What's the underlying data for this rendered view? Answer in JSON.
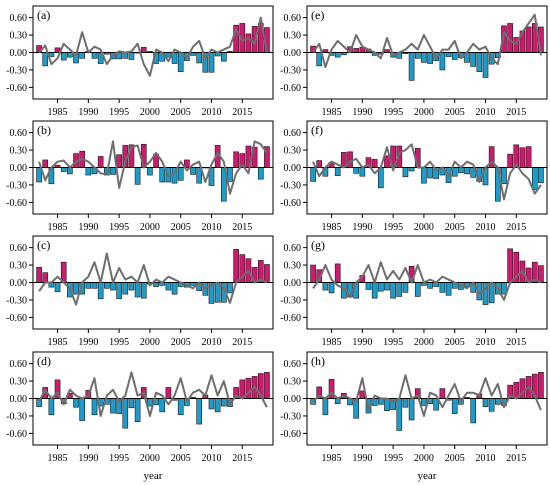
{
  "figure": {
    "xlabel": "year"
  },
  "colors": {
    "positive": "#cc1a6e",
    "negative": "#1a9ccc",
    "line": "#6e6e6e",
    "zero": "#000000"
  },
  "chart_data": [
    {
      "type": "bar",
      "label": "(a)",
      "x": [
        1982,
        1983,
        1984,
        1985,
        1986,
        1987,
        1988,
        1989,
        1990,
        1991,
        1992,
        1993,
        1994,
        1995,
        1996,
        1997,
        1998,
        1999,
        2000,
        2001,
        2002,
        2003,
        2004,
        2005,
        2006,
        2007,
        2008,
        2009,
        2010,
        2011,
        2012,
        2013,
        2014,
        2015,
        2016,
        2017,
        2018,
        2019
      ],
      "bars": [
        0.12,
        -0.23,
        -0.07,
        0.08,
        -0.13,
        -0.08,
        -0.18,
        -0.1,
        0.02,
        -0.1,
        -0.19,
        -0.03,
        -0.11,
        -0.11,
        -0.1,
        -0.12,
        -0.01,
        0.09,
        0.02,
        -0.19,
        -0.15,
        -0.08,
        -0.19,
        -0.33,
        -0.14,
        -0.05,
        -0.18,
        -0.34,
        -0.34,
        -0.06,
        -0.15,
        0.02,
        0.47,
        0.5,
        0.32,
        0.45,
        0.5,
        0.43
      ],
      "line": [
        0.0,
        0.12,
        -0.2,
        -0.1,
        0.15,
        0.05,
        -0.05,
        0.35,
        0.0,
        0.1,
        0.05,
        -0.2,
        -0.05,
        0.02,
        0.0,
        0.02,
        0.15,
        -0.2,
        -0.4,
        0.05,
        0.0,
        -0.15,
        0.05,
        0.0,
        -0.1,
        0.1,
        0.2,
        -0.1,
        0.05,
        0.0,
        0.05,
        0.1,
        0.4,
        0.2,
        0.25,
        0.15,
        0.6,
        0.0
      ],
      "ylim": [
        -0.8,
        0.8
      ],
      "yticks": [
        -0.6,
        -0.3,
        0.0,
        0.3,
        0.6
      ],
      "ytick_labels": [
        "-0.60",
        "-0.30",
        "0.00",
        "0.30",
        "0.60"
      ],
      "xticks": [
        1985,
        1990,
        1995,
        2000,
        2005,
        2010,
        2015
      ],
      "xtick_labels": [
        "1985",
        "1990",
        "1995",
        "2000",
        "2005",
        "2010",
        "2015"
      ]
    },
    {
      "type": "bar",
      "label": "(b)",
      "x": [
        1982,
        1983,
        1984,
        1985,
        1986,
        1987,
        1988,
        1989,
        1990,
        1991,
        1992,
        1993,
        1994,
        1995,
        1996,
        1997,
        1998,
        1999,
        2000,
        2001,
        2002,
        2003,
        2004,
        2005,
        2006,
        2007,
        2008,
        2009,
        2010,
        2011,
        2012,
        2013,
        2014,
        2015,
        2016,
        2017,
        2018,
        2019
      ],
      "bars": [
        -0.25,
        0.13,
        -0.28,
        0.04,
        -0.07,
        -0.11,
        0.24,
        0.28,
        -0.13,
        -0.11,
        0.19,
        -0.13,
        -0.12,
        0.22,
        0.38,
        0.39,
        -0.29,
        0.4,
        -0.13,
        0.23,
        -0.25,
        -0.25,
        -0.27,
        -0.22,
        0.13,
        -0.12,
        -0.27,
        0.0,
        -0.31,
        0.38,
        -0.58,
        -0.24,
        0.27,
        0.24,
        0.37,
        0.35,
        -0.2,
        0.36
      ],
      "line": [
        0.1,
        -0.22,
        0.0,
        0.1,
        0.12,
        0.0,
        0.1,
        0.15,
        0.1,
        0.0,
        -0.1,
        -0.12,
        0.45,
        -0.35,
        0.1,
        0.35,
        0.38,
        0.0,
        0.1,
        0.25,
        0.1,
        -0.15,
        -0.1,
        0.1,
        -0.05,
        0.05,
        0.1,
        -0.25,
        0.05,
        0.25,
        0.1,
        -0.45,
        -0.1,
        0.05,
        -0.1,
        0.45,
        0.4,
        0.25
      ],
      "ylim": [
        -0.8,
        0.8
      ],
      "yticks": [
        -0.6,
        -0.3,
        0.0,
        0.3,
        0.6
      ],
      "ytick_labels": [
        "-0.60",
        "-0.30",
        "0.00",
        "0.30",
        "0.60"
      ],
      "xticks": [
        1985,
        1990,
        1995,
        2000,
        2005,
        2010,
        2015
      ],
      "xtick_labels": [
        "1985",
        "1990",
        "1995",
        "2000",
        "2005",
        "2010",
        "2015"
      ]
    },
    {
      "type": "bar",
      "label": "(c)",
      "x": [
        1982,
        1983,
        1984,
        1985,
        1986,
        1987,
        1988,
        1989,
        1990,
        1991,
        1992,
        1993,
        1994,
        1995,
        1996,
        1997,
        1998,
        1999,
        2000,
        2001,
        2002,
        2003,
        2004,
        2005,
        2006,
        2007,
        2008,
        2009,
        2010,
        2011,
        2012,
        2013,
        2014,
        2015,
        2016,
        2017,
        2018,
        2019
      ],
      "bars": [
        0.26,
        0.17,
        -0.08,
        -0.16,
        0.35,
        -0.25,
        -0.2,
        -0.2,
        -0.1,
        -0.1,
        -0.28,
        -0.1,
        -0.13,
        -0.28,
        -0.2,
        -0.13,
        -0.25,
        -0.27,
        -0.03,
        -0.07,
        -0.05,
        -0.13,
        -0.2,
        -0.07,
        -0.08,
        -0.05,
        -0.14,
        -0.22,
        -0.36,
        -0.34,
        -0.34,
        -0.18,
        0.57,
        0.48,
        0.41,
        0.26,
        0.38,
        0.31
      ],
      "line": [
        -0.15,
        0.0,
        0.0,
        0.1,
        0.0,
        -0.1,
        -0.38,
        0.0,
        0.1,
        0.35,
        0.0,
        0.5,
        0.0,
        0.25,
        0.05,
        0.1,
        0.0,
        0.3,
        -0.05,
        0.05,
        0.0,
        0.1,
        0.05,
        0.0,
        -0.05,
        -0.1,
        0.0,
        -0.1,
        -0.05,
        0.0,
        -0.1,
        -0.35,
        0.0,
        0.1,
        0.2,
        0.0,
        0.05,
        0.0
      ],
      "ylim": [
        -0.8,
        0.8
      ],
      "yticks": [
        -0.6,
        -0.3,
        0.0,
        0.3,
        0.6
      ],
      "ytick_labels": [
        "-0.60",
        "-0.30",
        "0.00",
        "0.30",
        "0.60"
      ],
      "xticks": [
        1985,
        1990,
        1995,
        2000,
        2005,
        2010,
        2015
      ],
      "xtick_labels": [
        "1985",
        "1990",
        "1995",
        "2000",
        "2005",
        "2010",
        "2015"
      ]
    },
    {
      "type": "bar",
      "label": "(d)",
      "x": [
        1982,
        1983,
        1984,
        1985,
        1986,
        1987,
        1988,
        1989,
        1990,
        1991,
        1992,
        1993,
        1994,
        1995,
        1996,
        1997,
        1998,
        1999,
        2000,
        2001,
        2002,
        2003,
        2004,
        2005,
        2006,
        2007,
        2008,
        2009,
        2010,
        2011,
        2012,
        2013,
        2014,
        2015,
        2016,
        2017,
        2018,
        2019
      ],
      "bars": [
        -0.14,
        0.19,
        -0.28,
        0.32,
        -0.09,
        0.09,
        -0.15,
        -0.38,
        0.14,
        -0.28,
        -0.13,
        -0.1,
        -0.25,
        -0.26,
        -0.51,
        -0.16,
        -0.4,
        0.19,
        -0.13,
        -0.11,
        -0.23,
        0.19,
        -0.03,
        -0.28,
        -0.12,
        0.02,
        -0.44,
        0.06,
        -0.18,
        -0.23,
        -0.13,
        -0.14,
        0.19,
        0.32,
        0.35,
        0.38,
        0.43,
        0.45
      ],
      "line": [
        -0.05,
        0.15,
        0.0,
        0.1,
        -0.1,
        0.15,
        0.05,
        0.0,
        0.05,
        0.35,
        -0.3,
        0.05,
        0.15,
        -0.05,
        0.05,
        0.45,
        0.05,
        0.1,
        -0.3,
        0.1,
        0.05,
        -0.1,
        0.05,
        0.35,
        -0.05,
        0.1,
        0.15,
        0.05,
        0.4,
        0.05,
        0.3,
        -0.1,
        0.05,
        0.0,
        0.1,
        0.2,
        0.05,
        -0.15
      ],
      "ylim": [
        -0.8,
        0.8
      ],
      "yticks": [
        -0.6,
        -0.3,
        0.0,
        0.3,
        0.6
      ],
      "ytick_labels": [
        "-0.60",
        "-0.30",
        "0.00",
        "0.30",
        "0.60"
      ],
      "xticks": [
        1985,
        1990,
        1995,
        2000,
        2005,
        2010,
        2015
      ],
      "xtick_labels": [
        "1985",
        "1990",
        "1995",
        "2000",
        "2005",
        "2010",
        "2015"
      ]
    },
    {
      "type": "bar",
      "label": "(e)",
      "x": [
        1982,
        1983,
        1984,
        1985,
        1986,
        1987,
        1988,
        1989,
        1990,
        1991,
        1992,
        1993,
        1994,
        1995,
        1996,
        1997,
        1998,
        1999,
        2000,
        2001,
        2002,
        2003,
        2004,
        2005,
        2006,
        2007,
        2008,
        2009,
        2010,
        2011,
        2012,
        2013,
        2014,
        2015,
        2016,
        2017,
        2018,
        2019
      ],
      "bars": [
        0.11,
        -0.23,
        0.05,
        -0.05,
        -0.08,
        -0.04,
        0.1,
        0.07,
        0.09,
        0.06,
        -0.05,
        -0.03,
        0.05,
        -0.08,
        -0.1,
        -0.02,
        -0.48,
        -0.1,
        -0.17,
        -0.19,
        -0.14,
        -0.3,
        -0.07,
        -0.12,
        -0.09,
        -0.17,
        -0.24,
        -0.33,
        -0.43,
        -0.2,
        -0.09,
        0.46,
        0.5,
        0.26,
        0.37,
        0.44,
        0.5,
        0.44
      ],
      "line": [
        0.0,
        0.15,
        -0.25,
        0.05,
        0.2,
        0.1,
        0.0,
        0.3,
        0.1,
        0.05,
        0.0,
        -0.1,
        0.25,
        -0.05,
        0.0,
        0.05,
        0.15,
        0.05,
        0.3,
        0.1,
        -0.1,
        0.05,
        0.05,
        0.2,
        -0.1,
        0.0,
        0.15,
        0.05,
        0.1,
        -0.1,
        -0.2,
        0.35,
        0.2,
        0.15,
        0.35,
        0.5,
        0.65,
        -0.05
      ],
      "ylim": [
        -0.8,
        0.8
      ],
      "yticks": [
        -0.6,
        -0.3,
        0.0,
        0.3,
        0.6
      ],
      "ytick_labels": [
        "-0.60",
        "-0.30",
        "0.00",
        "0.30",
        "0.60"
      ],
      "xticks": [
        1985,
        1990,
        1995,
        2000,
        2005,
        2010,
        2015
      ],
      "xtick_labels": [
        "1985",
        "1990",
        "1995",
        "2000",
        "2005",
        "2010",
        "2015"
      ]
    },
    {
      "type": "bar",
      "label": "(f)",
      "x": [
        1982,
        1983,
        1984,
        1985,
        1986,
        1987,
        1988,
        1989,
        1990,
        1991,
        1992,
        1993,
        1994,
        1995,
        1996,
        1997,
        1998,
        1999,
        2000,
        2001,
        2002,
        2003,
        2004,
        2005,
        2006,
        2007,
        2008,
        2009,
        2010,
        2011,
        2012,
        2013,
        2014,
        2015,
        2016,
        2017,
        2018,
        2019
      ],
      "bars": [
        -0.24,
        0.12,
        -0.15,
        0.09,
        -0.14,
        0.26,
        0.27,
        -0.1,
        -0.15,
        0.17,
        0.14,
        -0.35,
        0.2,
        0.37,
        0.37,
        -0.16,
        -0.06,
        0.33,
        -0.27,
        -0.18,
        -0.19,
        -0.13,
        -0.26,
        -0.15,
        -0.09,
        -0.11,
        -0.17,
        -0.24,
        -0.3,
        0.36,
        -0.58,
        -0.28,
        0.23,
        0.39,
        0.34,
        0.36,
        -0.38,
        -0.26
      ],
      "line": [
        0.1,
        -0.15,
        0.0,
        0.1,
        0.05,
        0.0,
        0.1,
        0.15,
        0.0,
        0.05,
        -0.1,
        0.0,
        0.35,
        -0.05,
        0.25,
        0.3,
        0.4,
        0.0,
        0.0,
        0.1,
        -0.05,
        0.0,
        -0.15,
        0.1,
        0.0,
        0.1,
        0.05,
        -0.25,
        0.0,
        0.1,
        0.0,
        -0.55,
        -0.1,
        0.05,
        -0.1,
        -0.2,
        -0.45,
        -0.3
      ],
      "ylim": [
        -0.8,
        0.8
      ],
      "yticks": [
        -0.6,
        -0.3,
        0.0,
        0.3,
        0.6
      ],
      "ytick_labels": [
        "-0.60",
        "-0.30",
        "0.00",
        "0.30",
        "0.60"
      ],
      "xticks": [
        1985,
        1990,
        1995,
        2000,
        2005,
        2010,
        2015
      ],
      "xtick_labels": [
        "1985",
        "1990",
        "1995",
        "2000",
        "2005",
        "2010",
        "2015"
      ]
    },
    {
      "type": "bar",
      "label": "(g)",
      "x": [
        1982,
        1983,
        1984,
        1985,
        1986,
        1987,
        1988,
        1989,
        1990,
        1991,
        1992,
        1993,
        1994,
        1995,
        1996,
        1997,
        1998,
        1999,
        2000,
        2001,
        2002,
        2003,
        2004,
        2005,
        2006,
        2007,
        2008,
        2009,
        2010,
        2011,
        2012,
        2013,
        2014,
        2015,
        2016,
        2017,
        2018,
        2019
      ],
      "bars": [
        0.3,
        0.22,
        -0.13,
        -0.18,
        0.32,
        -0.27,
        -0.25,
        -0.27,
        0.12,
        -0.12,
        -0.27,
        -0.15,
        -0.13,
        -0.27,
        -0.24,
        -0.17,
        0.28,
        -0.24,
        -0.05,
        -0.1,
        -0.07,
        -0.17,
        -0.22,
        -0.1,
        -0.12,
        -0.07,
        -0.17,
        -0.3,
        -0.38,
        -0.35,
        -0.2,
        -0.2,
        0.58,
        0.52,
        0.37,
        0.25,
        0.35,
        0.29
      ],
      "line": [
        -0.1,
        0.05,
        0.3,
        0.05,
        -0.05,
        -0.1,
        -0.25,
        0.0,
        0.1,
        0.3,
        0.0,
        0.35,
        0.05,
        0.2,
        0.05,
        0.25,
        0.0,
        0.3,
        0.0,
        0.05,
        0.0,
        0.1,
        0.05,
        0.0,
        -0.05,
        -0.1,
        0.0,
        -0.2,
        -0.1,
        0.0,
        -0.1,
        -0.3,
        0.0,
        0.1,
        0.2,
        0.0,
        0.05,
        0.0
      ],
      "ylim": [
        -0.8,
        0.8
      ],
      "yticks": [
        -0.6,
        -0.3,
        0.0,
        0.3,
        0.6
      ],
      "ytick_labels": [
        "-0.60",
        "-0.30",
        "0.00",
        "0.30",
        "0.60"
      ],
      "xticks": [
        1985,
        1990,
        1995,
        2000,
        2005,
        2010,
        2015
      ],
      "xtick_labels": [
        "1985",
        "1990",
        "1995",
        "2000",
        "2005",
        "2010",
        "2015"
      ]
    },
    {
      "type": "bar",
      "label": "(h)",
      "x": [
        1982,
        1983,
        1984,
        1985,
        1986,
        1987,
        1988,
        1989,
        1990,
        1991,
        1992,
        1993,
        1994,
        1995,
        1996,
        1997,
        1998,
        1999,
        2000,
        2001,
        2002,
        2003,
        2004,
        2005,
        2006,
        2007,
        2008,
        2009,
        2010,
        2011,
        2012,
        2013,
        2014,
        2015,
        2016,
        2017,
        2018,
        2019
      ],
      "bars": [
        -0.1,
        0.2,
        -0.28,
        0.33,
        -0.09,
        0.09,
        -0.11,
        -0.34,
        0.13,
        -0.25,
        -0.12,
        -0.1,
        -0.21,
        -0.19,
        -0.55,
        -0.15,
        -0.37,
        0.17,
        -0.12,
        -0.09,
        -0.2,
        0.17,
        -0.03,
        -0.26,
        -0.1,
        0.02,
        -0.42,
        0.08,
        -0.14,
        -0.22,
        -0.1,
        -0.12,
        0.23,
        0.28,
        0.34,
        0.38,
        0.42,
        0.45
      ],
      "line": [
        -0.05,
        0.05,
        0.0,
        0.1,
        0.0,
        0.05,
        0.0,
        -0.05,
        0.35,
        -0.2,
        0.05,
        0.0,
        0.0,
        -0.05,
        0.0,
        0.4,
        0.0,
        0.05,
        -0.3,
        0.1,
        0.05,
        -0.15,
        0.05,
        0.25,
        -0.05,
        0.1,
        0.1,
        0.05,
        0.35,
        0.05,
        0.25,
        -0.15,
        0.05,
        0.0,
        0.1,
        0.2,
        0.05,
        -0.2
      ],
      "ylim": [
        -0.8,
        0.8
      ],
      "yticks": [
        -0.6,
        -0.3,
        0.0,
        0.3,
        0.6
      ],
      "ytick_labels": [
        "-0.60",
        "-0.30",
        "0.00",
        "0.30",
        "0.60"
      ],
      "xticks": [
        1985,
        1990,
        1995,
        2000,
        2005,
        2010,
        2015
      ],
      "xtick_labels": [
        "1985",
        "1990",
        "1995",
        "2000",
        "2005",
        "2010",
        "2015"
      ]
    }
  ]
}
